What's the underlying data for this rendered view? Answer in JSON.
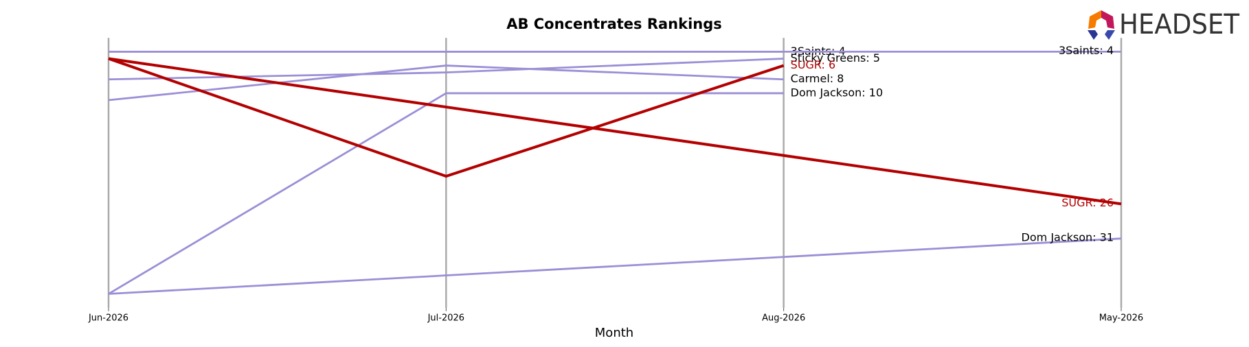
{
  "chart_data": {
    "type": "bump",
    "title": "AB Concentrates Rankings",
    "x_label": "Month",
    "logo_text": "HEADSET",
    "categories": [
      "Jun-2026",
      "Jul-2026",
      "Aug-2026",
      "May-2026"
    ],
    "ylim": [
      41,
      2
    ],
    "series": [
      {
        "name": "3Saints",
        "color": "#9b8fd6",
        "x": [
          "Jun-2026",
          "Jul-2026",
          "Aug-2026"
        ],
        "values": [
          4,
          4,
          4
        ],
        "end_label": "3Saints: 4",
        "label_color": "#000000"
      },
      {
        "name": "3Saints",
        "color": "#9b8fd6",
        "x": [
          "Jun-2026",
          "May-2026"
        ],
        "values": [
          4,
          4
        ],
        "end_label": "3Saints: 4",
        "label_color": "#000000"
      },
      {
        "name": "Sticky Greens",
        "color": "#9b8fd6",
        "x": [
          "Jun-2026",
          "Jul-2026",
          "Aug-2026"
        ],
        "values": [
          8,
          7,
          5
        ],
        "end_label": "Sticky Greens: 5",
        "label_color": "#000000"
      },
      {
        "name": "Carmel",
        "color": "#9b8fd6",
        "x": [
          "Jun-2026",
          "Jul-2026",
          "Aug-2026"
        ],
        "values": [
          11,
          6,
          8
        ],
        "end_label": "Carmel: 8",
        "label_color": "#000000"
      },
      {
        "name": "Dom Jackson",
        "color": "#9b8fd6",
        "x": [
          "Jun-2026",
          "Jul-2026",
          "Aug-2026"
        ],
        "values": [
          39,
          10,
          10
        ],
        "end_label": "Dom Jackson: 10",
        "label_color": "#000000"
      },
      {
        "name": "Dom Jackson",
        "color": "#9b8fd6",
        "x": [
          "Jun-2026",
          "May-2026"
        ],
        "values": [
          39,
          31
        ],
        "end_label": "Dom Jackson: 31",
        "label_color": "#000000"
      },
      {
        "name": "SUGR",
        "color": "#b30000",
        "x": [
          "Jun-2026",
          "Jul-2026",
          "Aug-2026"
        ],
        "values": [
          5,
          22,
          6
        ],
        "end_label": "SUGR: 6",
        "label_color": "#b30000"
      },
      {
        "name": "SUGR",
        "color": "#b30000",
        "x": [
          "Jun-2026",
          "May-2026"
        ],
        "values": [
          5,
          26
        ],
        "end_label": "SUGR: 26",
        "label_color": "#b30000"
      }
    ]
  }
}
